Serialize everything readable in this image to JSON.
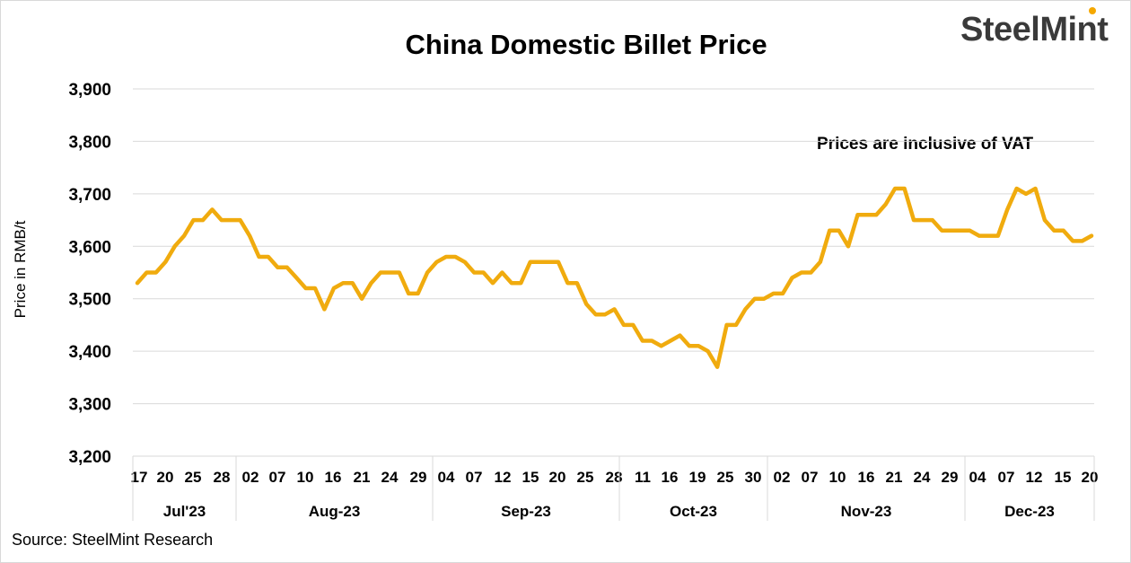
{
  "header": {
    "title": "China Domestic Billet Price",
    "logo": "SteelMint"
  },
  "annotation": "Prices are inclusive of VAT",
  "footer": {
    "source": "Source: SteelMint Research"
  },
  "colors": {
    "line": "#f0ab0e",
    "grid": "#d9d9d9",
    "text": "#000000"
  },
  "chart_data": {
    "type": "line",
    "title": "China Domestic Billet Price",
    "xlabel": "",
    "ylabel": "Price in RMB/t",
    "ylim": [
      3200,
      3900
    ],
    "yticks": [
      "3,200",
      "3,300",
      "3,400",
      "3,500",
      "3,600",
      "3,700",
      "3,800",
      "3,900"
    ],
    "grid": true,
    "legend": "none",
    "tick_labels": [
      "17",
      "20",
      "25",
      "28",
      "02",
      "07",
      "10",
      "16",
      "21",
      "24",
      "29",
      "04",
      "07",
      "12",
      "15",
      "20",
      "25",
      "28",
      "11",
      "16",
      "19",
      "25",
      "30",
      "02",
      "07",
      "10",
      "16",
      "21",
      "24",
      "29",
      "04",
      "07",
      "12",
      "15",
      "20"
    ],
    "months": [
      "Jul'23",
      "Aug-23",
      "Sep-23",
      "Oct-23",
      "Nov-23",
      "Dec-23"
    ],
    "series": [
      {
        "values": [
          3530,
          3550,
          3550,
          3570,
          3600,
          3620,
          3650,
          3650,
          3670,
          3650,
          3650,
          3650,
          3620,
          3580,
          3580,
          3560,
          3560,
          3540,
          3520,
          3520,
          3480,
          3520,
          3530,
          3530,
          3500,
          3530,
          3550,
          3550,
          3550,
          3510,
          3510,
          3550,
          3570,
          3580,
          3580,
          3570,
          3550,
          3550,
          3530,
          3550,
          3530,
          3530,
          3570,
          3570,
          3570,
          3570,
          3530,
          3530,
          3490,
          3470,
          3470,
          3480,
          3450,
          3450,
          3420,
          3420,
          3410,
          3420,
          3430,
          3410,
          3410,
          3400,
          3370,
          3450,
          3450,
          3480,
          3500,
          3500,
          3510,
          3510,
          3540,
          3550,
          3550,
          3570,
          3630,
          3630,
          3600,
          3660,
          3660,
          3660,
          3680,
          3710,
          3710,
          3650,
          3650,
          3650,
          3630,
          3630,
          3630,
          3630,
          3620,
          3620,
          3620,
          3670,
          3710,
          3700,
          3710,
          3650,
          3630,
          3630,
          3610,
          3610,
          3620
        ]
      }
    ]
  }
}
